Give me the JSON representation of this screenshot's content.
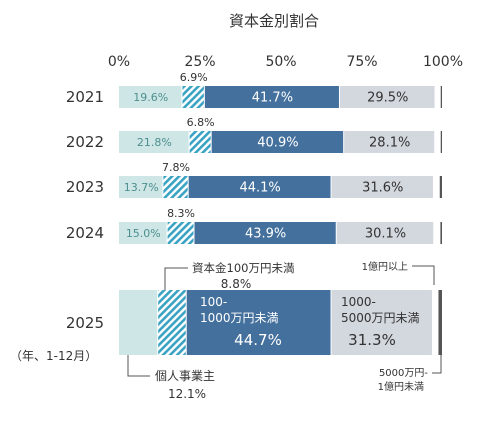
{
  "chart_data": {
    "type": "bar",
    "orientation": "horizontal",
    "stacked": true,
    "title": "資本金別割合",
    "x_ticks": [
      "0%",
      "25%",
      "50%",
      "75%",
      "100%"
    ],
    "xlim": [
      0,
      100
    ],
    "categories": [
      "2021",
      "2022",
      "2023",
      "2024",
      "2025"
    ],
    "category_note": "（年、1-12月）",
    "series": [
      {
        "name": "個人事業主",
        "color": "#cfe6e6",
        "text_color": "#4d8f8f",
        "values": [
          19.6,
          21.8,
          13.7,
          15.0,
          12.1
        ],
        "labels": [
          "19.6%",
          "21.8%",
          "13.7%",
          "15.0%",
          "12.1%"
        ]
      },
      {
        "name": "資本金100万円未満",
        "color": "#3aa3c4",
        "hatched": true,
        "text_color": "#333333",
        "values": [
          6.9,
          6.8,
          7.8,
          8.3,
          8.8
        ],
        "labels": [
          "6.9%",
          "6.8%",
          "7.8%",
          "8.3%",
          "8.8%"
        ]
      },
      {
        "name": "100-1000万円未満",
        "color": "#44709d",
        "text_color": "#ffffff",
        "values": [
          41.7,
          40.9,
          44.1,
          43.9,
          44.7
        ],
        "labels": [
          "41.7%",
          "40.9%",
          "44.1%",
          "43.9%",
          "44.7%"
        ]
      },
      {
        "name": "1000-5000万円未満",
        "color": "#d3d7de",
        "text_color": "#333333",
        "values": [
          29.5,
          28.1,
          31.6,
          30.1,
          31.3
        ],
        "labels": [
          "29.5%",
          "28.1%",
          "31.6%",
          "30.1%",
          "31.3%"
        ]
      },
      {
        "name": "5000万円-1億円未満",
        "color": "#ffffff",
        "text_color": "#333333",
        "values": [
          1.6,
          1.7,
          1.8,
          1.9,
          1.7
        ],
        "labels": [
          "",
          "",
          "",
          "",
          ""
        ]
      },
      {
        "name": "1億円以上",
        "color": "#555555",
        "text_color": "#333333",
        "values": [
          0.7,
          0.7,
          1.0,
          0.8,
          1.4
        ],
        "labels": [
          "",
          "",
          "",
          "",
          ""
        ]
      }
    ],
    "annotations_2025": {
      "capital_under_100": "資本金100万円未満",
      "capital_under_100_value": "8.8%",
      "sole_proprietor": "個人事業主",
      "sole_proprietor_value": "12.1%",
      "mid_label_line1": "100-",
      "mid_label_line2": "1000万円未満",
      "mid_value": "44.7%",
      "upper_label_line1": "1000-",
      "upper_label_line2": "5000万円未満",
      "upper_value": "31.3%",
      "over_100m": "1億円以上",
      "between_label_line1": "5000万円-",
      "between_label_line2": "1億円未満"
    }
  }
}
